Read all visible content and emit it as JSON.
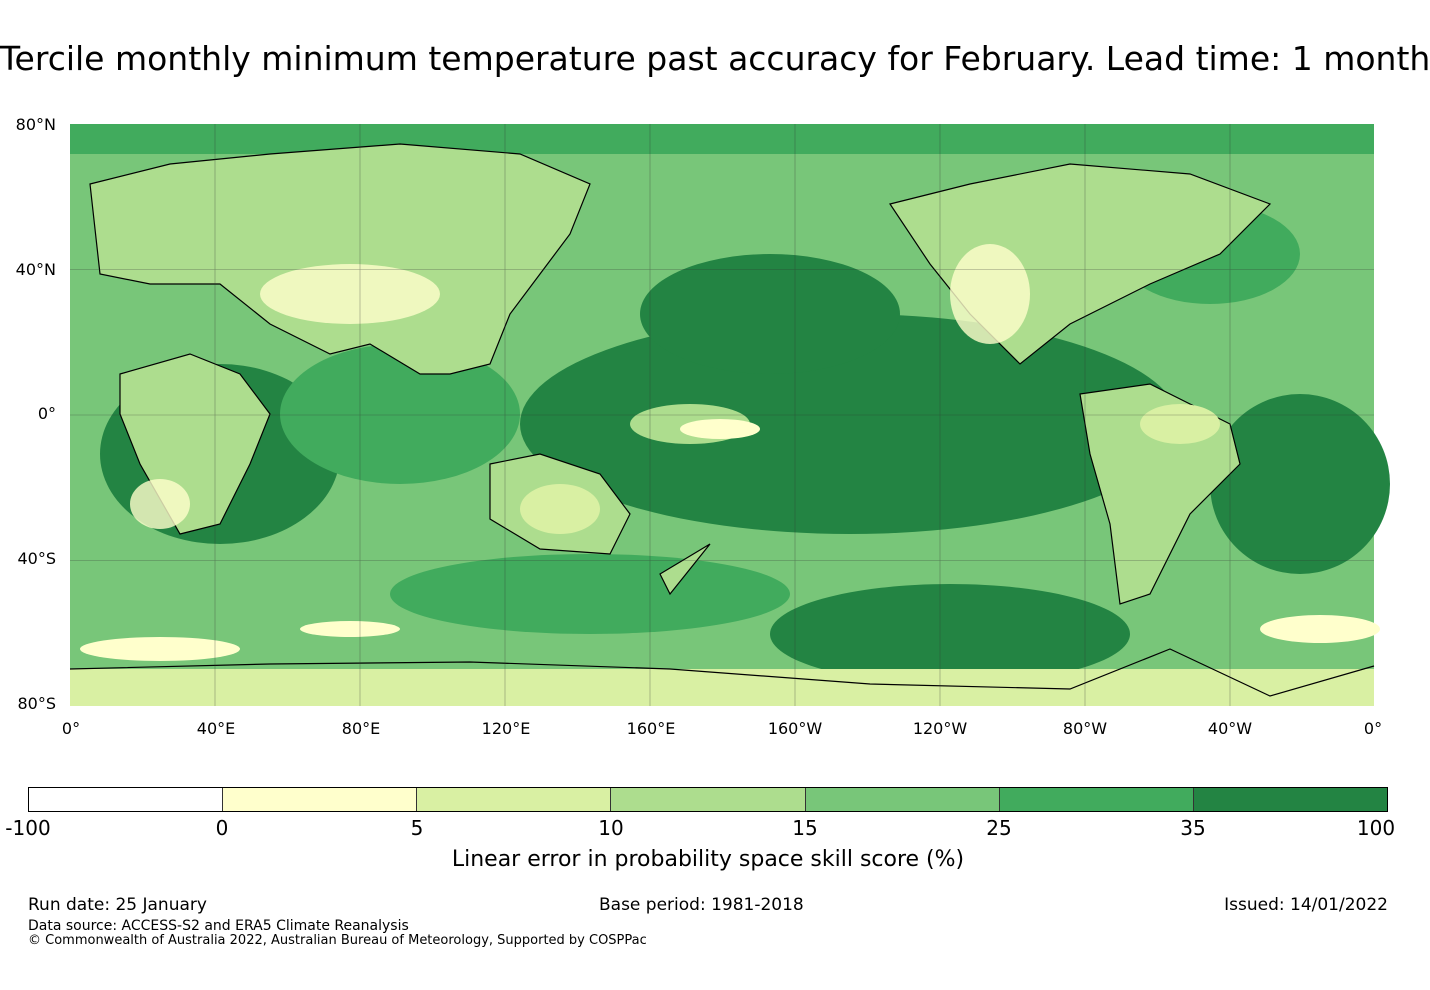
{
  "title": "Tercile monthly minimum temperature past accuracy for February. Lead time: 1 month",
  "map": {
    "lat_labels": [
      "80°N",
      "40°N",
      "0°",
      "40°S",
      "80°S"
    ],
    "lon_labels": [
      "0°",
      "40°E",
      "80°E",
      "120°E",
      "160°E",
      "160°W",
      "120°W",
      "80°W",
      "40°W",
      "0°"
    ],
    "background_color": "#7dc56f"
  },
  "colorbar": {
    "ticks": [
      "-100",
      "0",
      "5",
      "10",
      "15",
      "25",
      "35",
      "100"
    ],
    "colors": [
      "#ffffff",
      "#ffffcc",
      "#d9f0a3",
      "#addd8e",
      "#78c679",
      "#41ab5d",
      "#238443"
    ],
    "label": "Linear error in probability space skill score (%)"
  },
  "footer": {
    "run_date": "Run date: 25 January",
    "base_period": "Base period: 1981-2018",
    "issued": "Issued: 14/01/2022",
    "data_source": "Data source: ACCESS-S2 and ERA5 Climate Reanalysis",
    "copyright": "© Commonwealth of Australia 2022, Australian Bureau of Meteorology, Supported by COSPPac"
  }
}
